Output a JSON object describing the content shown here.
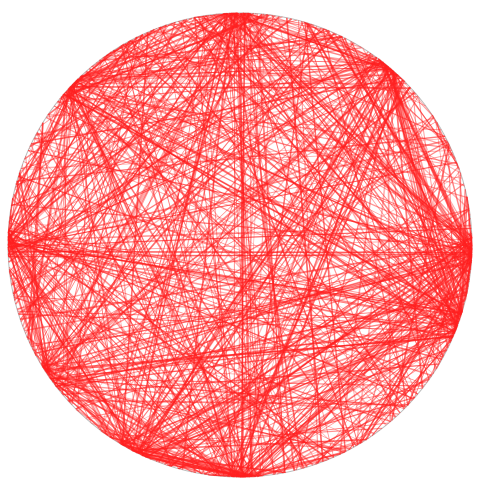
{
  "diagram": {
    "type": "circular-chord-network",
    "edge_color": "#ff2020",
    "background": "#ffffff",
    "outline_color": "#bbbbbb",
    "edge_opacity": 0.55,
    "edge_count": 700,
    "hub_count": 9,
    "seed": 17
  }
}
